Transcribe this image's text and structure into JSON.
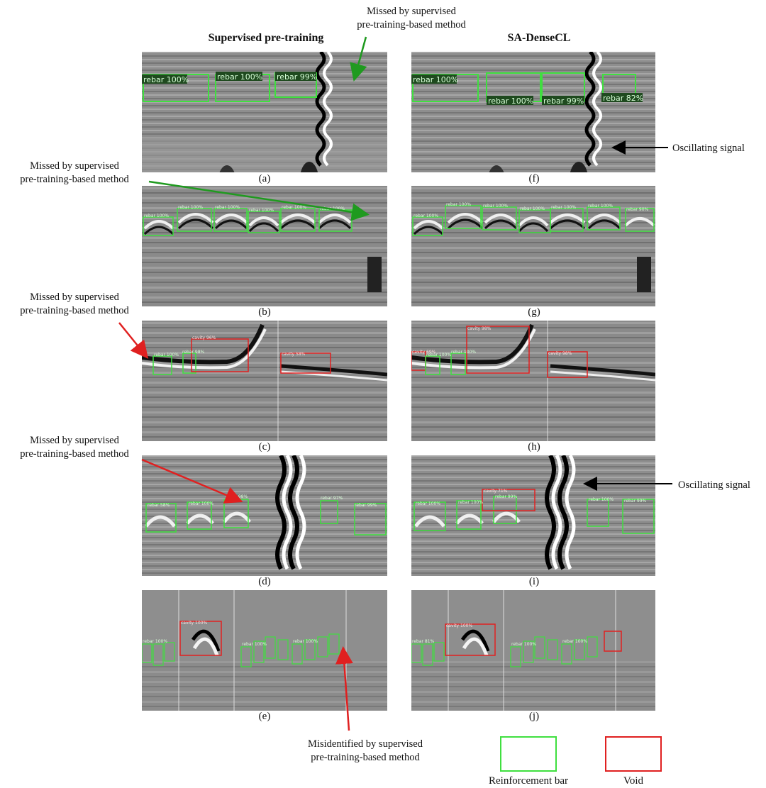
{
  "titles": {
    "left": "Supervised pre-training",
    "right": "SA-DenseCL"
  },
  "annotations": {
    "missed_top": [
      "Missed by supervised",
      "pre-training-based method"
    ],
    "missed_b": [
      "Missed by supervised",
      "pre-training-based method"
    ],
    "missed_c": [
      "Missed by supervised",
      "pre-training-based method"
    ],
    "missed_d": [
      "Missed by supervised",
      "pre-training-based method"
    ],
    "misidentified_e": [
      "Misidentified by supervised",
      "pre-training-based method"
    ],
    "oscillating_f": "Oscillating signal",
    "oscillating_i": "Oscillating signal"
  },
  "panel_labels": [
    "(a)",
    "(b)",
    "(c)",
    "(d)",
    "(e)",
    "(f)",
    "(g)",
    "(h)",
    "(i)",
    "(j)"
  ],
  "legend": [
    {
      "label": "Reinforcement bar",
      "color": "#3fdf3f"
    },
    {
      "label": "Void",
      "color": "#e02020"
    }
  ],
  "colors": {
    "rebar": "#3fdf3f",
    "void": "#e02020",
    "arrow_green": "#1f9a1f",
    "arrow_red": "#e02020",
    "arrow_black": "#000000"
  },
  "detections": {
    "a": [
      "rebar 100%",
      "rebar 100%",
      "rebar 99%"
    ],
    "f": [
      "rebar 100%",
      "rebar 100%",
      "rebar 99%",
      "rebar 82%"
    ],
    "b": [
      "rebar 100%",
      "rebar 100%",
      "rebar 100%",
      "rebar 100%",
      "rebar 100%",
      "rebar 100%"
    ],
    "g": [
      "rebar 100%",
      "rebar 100%",
      "rebar 100%",
      "rebar 100%",
      "rebar 100%",
      "rebar 100%",
      "rebar 90%"
    ],
    "c": [
      "rebar 100%",
      "rebar 98%",
      "cavity 96%",
      "cavity 58%"
    ],
    "h": [
      "cavity 69%",
      "rebar 100%",
      "rebar 100%",
      "cavity 98%",
      "cavity 98%"
    ],
    "d": [
      "rebar 58%",
      "rebar 100%",
      "rebar 98%",
      "rebar 97%",
      "rebar 99%"
    ],
    "i": [
      "rebar 100%",
      "rebar 100%",
      "cavity 71%",
      "rebar 99%",
      "rebar 100%",
      "rebar 99%"
    ],
    "e": [
      "cavity 100%",
      "rebar 100%",
      "rebar 100%",
      "rebar 100%"
    ],
    "j": [
      "cavity 100%",
      "rebar 81%",
      "rebar 100%",
      "rebar 100%"
    ]
  }
}
